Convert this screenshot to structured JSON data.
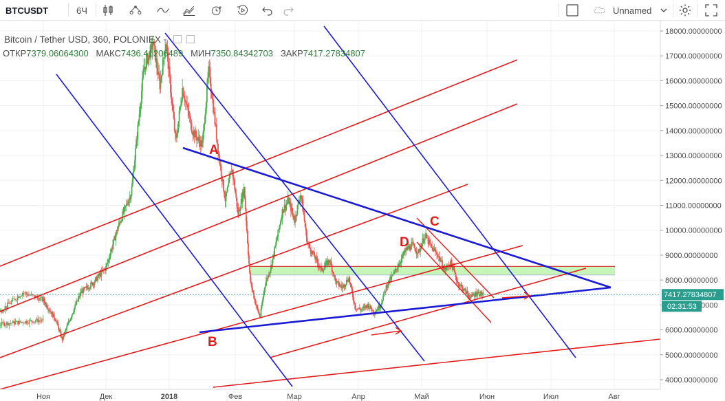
{
  "toolbar": {
    "symbol": "BTCUSDT",
    "interval": "6Ч",
    "layout_name": "Unnamed",
    "icons": [
      "candles-icon",
      "indicators-icon",
      "line-icon",
      "compare-icon",
      "alert-icon",
      "replay-icon",
      "undo-icon",
      "redo-icon",
      "checkbox-icon",
      "cloud-icon",
      "chevron-down-icon",
      "gear-icon",
      "fullscreen-icon"
    ]
  },
  "legend": {
    "title": "Bitcoin / Tether USD, 360, POLONIEX",
    "open_label": "ОТКР",
    "open_value": "7379.06064300",
    "high_label": "МАКС",
    "high_value": "7436.41206489",
    "low_label": "МИН",
    "low_value": "7350.84342703",
    "close_label": "ЗАКР",
    "close_value": "7417.27834807"
  },
  "price_badge": {
    "value": "7417.27834807",
    "countdown": "02:31:53"
  },
  "colors": {
    "candle_up": "#4caf50",
    "candle_down": "#ef5350",
    "blue_line": "#1a1ad6",
    "red_line": "#e31a1a",
    "zone_fill": "#b4f0a0",
    "badge": "#2a9d8f"
  },
  "chart_data": {
    "type": "candlestick",
    "title": "Bitcoin / Tether USD, 360, POLONIEX",
    "x_tick_labels": [
      "Ноя",
      "Дек",
      "2018",
      "Фев",
      "Мар",
      "Апр",
      "Май",
      "Июн",
      "Июл",
      "Авг"
    ],
    "y_tick_labels": [
      "4000.00000000",
      "5000.00000000",
      "6000.00000000",
      "7000.00000000",
      "8000.00000000",
      "9000.00000000",
      "10000.00000000",
      "11000.00000000",
      "12000.00000000",
      "13000.00000000",
      "14000.00000000",
      "15000.00000000",
      "16000.00000000",
      "17000.00000000",
      "18000.00000000"
    ],
    "ylim": [
      3800,
      18100
    ],
    "last_price": 7417.27834807,
    "price_path": [
      [
        -2.0,
        5700
      ],
      [
        -1.5,
        6200
      ],
      [
        -1.0,
        6400
      ],
      [
        -0.7,
        6000
      ],
      [
        -0.4,
        6800
      ],
      [
        -0.2,
        7500
      ],
      [
        0.0,
        7200
      ],
      [
        0.2,
        6400
      ],
      [
        0.3,
        5600
      ],
      [
        0.45,
        6600
      ],
      [
        0.6,
        7500
      ],
      [
        0.8,
        7900
      ],
      [
        1.0,
        8500
      ],
      [
        1.2,
        10200
      ],
      [
        1.4,
        11500
      ],
      [
        1.5,
        14000
      ],
      [
        1.6,
        16500
      ],
      [
        1.75,
        17500
      ],
      [
        1.85,
        15800
      ],
      [
        1.95,
        17600
      ],
      [
        2.1,
        13500
      ],
      [
        2.2,
        15700
      ],
      [
        2.35,
        14000
      ],
      [
        2.5,
        13400
      ],
      [
        2.6,
        16500
      ],
      [
        2.75,
        13000
      ],
      [
        2.85,
        11200
      ],
      [
        2.95,
        12500
      ],
      [
        3.05,
        10600
      ],
      [
        3.15,
        11700
      ],
      [
        3.25,
        8000
      ],
      [
        3.35,
        7000
      ],
      [
        3.42,
        6500
      ],
      [
        3.5,
        7800
      ],
      [
        3.6,
        8500
      ],
      [
        3.7,
        9600
      ],
      [
        3.8,
        10800
      ],
      [
        3.9,
        11200
      ],
      [
        4.0,
        10400
      ],
      [
        4.1,
        11500
      ],
      [
        4.2,
        9500
      ],
      [
        4.3,
        9000
      ],
      [
        4.42,
        8400
      ],
      [
        4.55,
        8800
      ],
      [
        4.65,
        7900
      ],
      [
        4.75,
        7700
      ],
      [
        4.85,
        8100
      ],
      [
        4.95,
        6900
      ],
      [
        5.05,
        6800
      ],
      [
        5.15,
        7000
      ],
      [
        5.25,
        6700
      ],
      [
        5.35,
        7000
      ],
      [
        5.45,
        7800
      ],
      [
        5.55,
        8200
      ],
      [
        5.65,
        8700
      ],
      [
        5.75,
        9200
      ],
      [
        5.85,
        9400
      ],
      [
        5.95,
        9100
      ],
      [
        6.05,
        9800
      ],
      [
        6.15,
        9300
      ],
      [
        6.25,
        9000
      ],
      [
        6.35,
        8400
      ],
      [
        6.45,
        8700
      ],
      [
        6.55,
        7900
      ],
      [
        6.65,
        7600
      ],
      [
        6.75,
        7300
      ],
      [
        6.85,
        7500
      ],
      [
        6.95,
        7400
      ]
    ],
    "trendlines": [
      {
        "color": "blue",
        "points": [
          [
            "Окт",
            3.2
          ],
          [
            "Фев",
            -1.2
          ]
        ]
      }
    ],
    "annotations": [
      {
        "label": "A",
        "price": 13200
      },
      {
        "label": "B",
        "price": 5400
      },
      {
        "label": "C",
        "price": 10200
      },
      {
        "label": "D",
        "price": 9650
      }
    ],
    "zone": {
      "from": 8200,
      "to": 8550
    }
  }
}
